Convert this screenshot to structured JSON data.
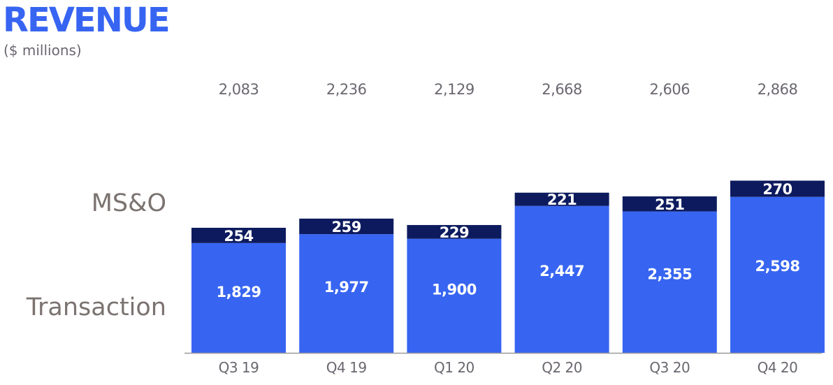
{
  "header": {
    "title": "REVENUE",
    "subtitle": "($ millions)"
  },
  "colors": {
    "title": "#3765f2",
    "transaction": "#3765f2",
    "mso": "#0d1b5e",
    "total_label": "#6b6670",
    "segment_label": "#7b7370",
    "axis": "#9a9a9a"
  },
  "chart_data": {
    "type": "bar",
    "stacked": true,
    "categories": [
      "Q3 19",
      "Q4 19",
      "Q1 20",
      "Q2 20",
      "Q3 20",
      "Q4 20"
    ],
    "series": [
      {
        "name": "Transaction",
        "values": [
          1829,
          1977,
          1900,
          2447,
          2355,
          2598
        ]
      },
      {
        "name": "MS&O",
        "values": [
          254,
          259,
          229,
          221,
          251,
          270
        ]
      }
    ],
    "value_labels": {
      "Transaction": [
        "1,829",
        "1,977",
        "1,900",
        "2,447",
        "2,355",
        "2,598"
      ],
      "MS&O": [
        "254",
        "259",
        "229",
        "221",
        "251",
        "270"
      ]
    },
    "totals": [
      "2,083",
      "2,236",
      "2,129",
      "2,668",
      "2,606",
      "2,868"
    ],
    "title": "REVENUE",
    "ylabel": "($ millions)",
    "ylim": [
      0,
      2900
    ],
    "grid": false
  }
}
